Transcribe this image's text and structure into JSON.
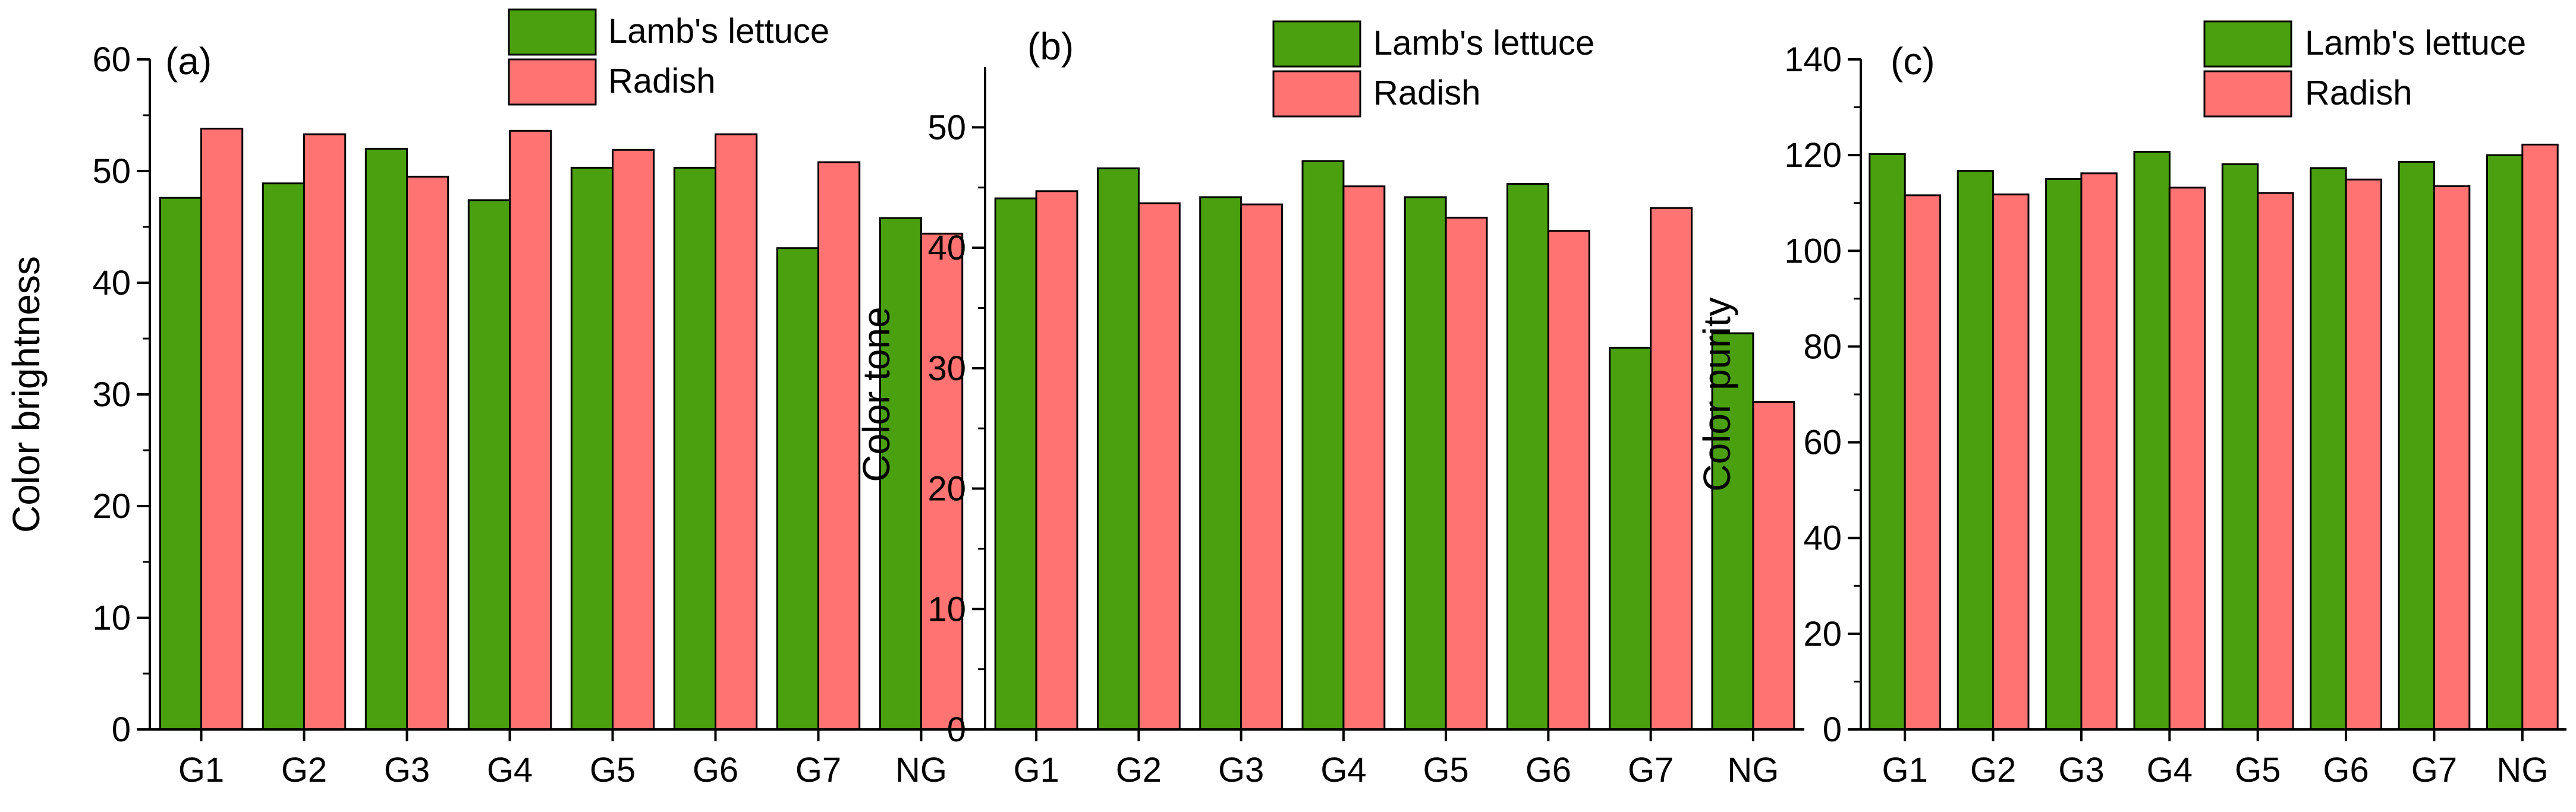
{
  "colors": {
    "lettuce": "#4aa00e",
    "radish": "#ff7373",
    "axis": "#000000"
  },
  "chart_data": [
    {
      "type": "bar",
      "panel_label": "(a)",
      "categories": [
        "G1",
        "G2",
        "G3",
        "G4",
        "G5",
        "G6",
        "G7",
        "NG"
      ],
      "series": [
        {
          "name": "Lamb's lettuce",
          "values": [
            47.6,
            48.9,
            52.0,
            47.4,
            50.3,
            50.3,
            43.1,
            45.8
          ]
        },
        {
          "name": "Radish",
          "values": [
            53.8,
            53.3,
            49.5,
            53.6,
            51.9,
            53.3,
            50.8,
            44.4
          ]
        }
      ],
      "xlabel": "",
      "ylabel": "Color brightness",
      "ylim": [
        0,
        60
      ],
      "yticks": [
        "0",
        "10",
        "20",
        "30",
        "40",
        "50",
        "60"
      ],
      "legend": "top-right",
      "grid": false
    },
    {
      "type": "bar",
      "panel_label": "(b)",
      "categories": [
        "G1",
        "G2",
        "G3",
        "G4",
        "G5",
        "G6",
        "G7",
        "NG"
      ],
      "series": [
        {
          "name": "Lamb's lettuce",
          "values": [
            44.1,
            46.6,
            44.2,
            47.2,
            44.2,
            45.3,
            31.7,
            32.9
          ]
        },
        {
          "name": "Radish",
          "values": [
            44.7,
            43.7,
            43.6,
            45.1,
            42.5,
            41.4,
            43.3,
            27.2
          ]
        }
      ],
      "xlabel": "",
      "ylabel": "Color tone",
      "ylim": [
        0,
        55
      ],
      "yticks": [
        "0",
        "10",
        "20",
        "30",
        "40",
        "50"
      ],
      "legend": "top-right",
      "grid": false
    },
    {
      "type": "bar",
      "panel_label": "(c)",
      "categories": [
        "G1",
        "G2",
        "G3",
        "G4",
        "G5",
        "G6",
        "G7",
        "NG"
      ],
      "series": [
        {
          "name": "Lamb's lettuce",
          "values": [
            120.2,
            116.7,
            115.0,
            120.7,
            118.1,
            117.3,
            118.6,
            120.0
          ]
        },
        {
          "name": "Radish",
          "values": [
            111.6,
            111.8,
            116.2,
            113.2,
            112.1,
            114.9,
            113.5,
            122.2
          ]
        }
      ],
      "xlabel": "",
      "ylabel": "Color purity",
      "ylim": [
        0,
        140
      ],
      "yticks": [
        "0",
        "20",
        "40",
        "60",
        "80",
        "100",
        "120",
        "140"
      ],
      "legend": "top-right",
      "grid": false
    }
  ]
}
